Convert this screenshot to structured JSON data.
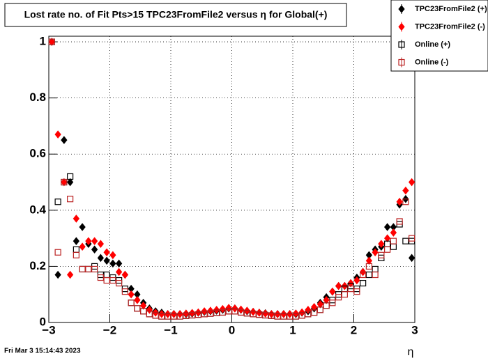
{
  "chart_data": {
    "type": "scatter",
    "title": "Lost rate no. of Fit Pts>15 TPC23FromFile2 versus η for Global(+)",
    "x_label": "η",
    "footer": "Fri Mar  3 15:14:43 2023",
    "x": [
      -2.95,
      -2.85,
      -2.75,
      -2.65,
      -2.55,
      -2.45,
      -2.35,
      -2.25,
      -2.15,
      -2.05,
      -1.95,
      -1.85,
      -1.75,
      -1.65,
      -1.55,
      -1.45,
      -1.35,
      -1.25,
      -1.15,
      -1.05,
      -0.95,
      -0.85,
      -0.75,
      -0.65,
      -0.55,
      -0.45,
      -0.35,
      -0.25,
      -0.15,
      -0.05,
      0.05,
      0.15,
      0.25,
      0.35,
      0.45,
      0.55,
      0.65,
      0.75,
      0.85,
      0.95,
      1.05,
      1.15,
      1.25,
      1.35,
      1.45,
      1.55,
      1.65,
      1.75,
      1.85,
      1.95,
      2.05,
      2.15,
      2.25,
      2.35,
      2.45,
      2.55,
      2.65,
      2.75,
      2.85,
      2.95
    ],
    "series": [
      {
        "name": "TPC23FromFile2 (+)",
        "color": "#000000",
        "marker": "diamond",
        "values": [
          1.0,
          0.17,
          0.65,
          0.5,
          0.29,
          0.34,
          0.28,
          0.26,
          0.23,
          0.22,
          0.21,
          0.21,
          0.17,
          0.12,
          0.1,
          0.07,
          0.05,
          0.04,
          0.035,
          0.03,
          0.03,
          0.03,
          0.03,
          0.032,
          0.035,
          0.038,
          0.04,
          0.042,
          0.045,
          0.05,
          0.05,
          0.045,
          0.04,
          0.038,
          0.035,
          0.033,
          0.03,
          0.03,
          0.03,
          0.03,
          0.03,
          0.035,
          0.04,
          0.05,
          0.07,
          0.09,
          0.11,
          0.13,
          0.13,
          0.14,
          0.16,
          0.18,
          0.24,
          0.26,
          0.27,
          0.34,
          0.34,
          0.42,
          0.44,
          0.23
        ]
      },
      {
        "name": "TPC23FromFile2 (-)",
        "color": "#ff0000",
        "marker": "diamond",
        "values": [
          1.0,
          0.67,
          0.5,
          0.17,
          0.37,
          0.27,
          0.29,
          0.29,
          0.28,
          0.25,
          0.24,
          0.18,
          0.17,
          0.1,
          0.08,
          0.06,
          0.045,
          0.035,
          0.03,
          0.03,
          0.03,
          0.03,
          0.032,
          0.034,
          0.036,
          0.04,
          0.042,
          0.045,
          0.048,
          0.052,
          0.05,
          0.046,
          0.042,
          0.038,
          0.035,
          0.032,
          0.03,
          0.03,
          0.03,
          0.03,
          0.032,
          0.036,
          0.045,
          0.055,
          0.065,
          0.08,
          0.11,
          0.13,
          0.13,
          0.14,
          0.15,
          0.18,
          0.22,
          0.25,
          0.28,
          0.3,
          0.32,
          0.43,
          0.47,
          0.5
        ]
      },
      {
        "name": "Online (+)",
        "color": "#000000",
        "marker": "square-open",
        "values": [
          1.0,
          0.43,
          0.5,
          0.52,
          0.26,
          0.19,
          0.19,
          0.2,
          0.17,
          0.17,
          0.16,
          0.15,
          0.12,
          0.07,
          0.05,
          0.04,
          0.03,
          0.025,
          0.022,
          0.022,
          0.022,
          0.022,
          0.024,
          0.026,
          0.028,
          0.03,
          0.032,
          0.034,
          0.036,
          0.04,
          0.04,
          0.036,
          0.033,
          0.03,
          0.028,
          0.026,
          0.024,
          0.022,
          0.022,
          0.022,
          0.022,
          0.025,
          0.03,
          0.035,
          0.045,
          0.06,
          0.08,
          0.1,
          0.12,
          0.13,
          0.12,
          0.14,
          0.17,
          0.19,
          0.23,
          0.28,
          0.27,
          0.35,
          0.29,
          0.29
        ]
      },
      {
        "name": "Online (-)",
        "color": "#bb2222",
        "marker": "square-open",
        "values": [
          1.0,
          0.25,
          0.5,
          0.44,
          0.24,
          0.19,
          0.19,
          0.19,
          0.16,
          0.15,
          0.15,
          0.14,
          0.11,
          0.07,
          0.05,
          0.04,
          0.03,
          0.025,
          0.022,
          0.022,
          0.022,
          0.022,
          0.024,
          0.026,
          0.028,
          0.03,
          0.032,
          0.034,
          0.036,
          0.04,
          0.04,
          0.036,
          0.033,
          0.03,
          0.028,
          0.026,
          0.024,
          0.022,
          0.022,
          0.022,
          0.022,
          0.025,
          0.03,
          0.035,
          0.045,
          0.06,
          0.07,
          0.09,
          0.1,
          0.12,
          0.11,
          0.17,
          0.2,
          0.17,
          0.24,
          0.26,
          0.29,
          0.36,
          0.43,
          0.3
        ]
      }
    ],
    "xlim": [
      -3,
      3
    ],
    "ylim": [
      0,
      1.02
    ],
    "xticks": [
      {
        "value": -3,
        "label": "−3"
      },
      {
        "value": -2,
        "label": "−2"
      },
      {
        "value": -1,
        "label": "−1"
      },
      0,
      1,
      2,
      3
    ],
    "yticks": [
      0,
      0.2,
      0.4,
      0.6,
      0.8,
      1
    ],
    "grid": true,
    "legend": "top-right"
  }
}
